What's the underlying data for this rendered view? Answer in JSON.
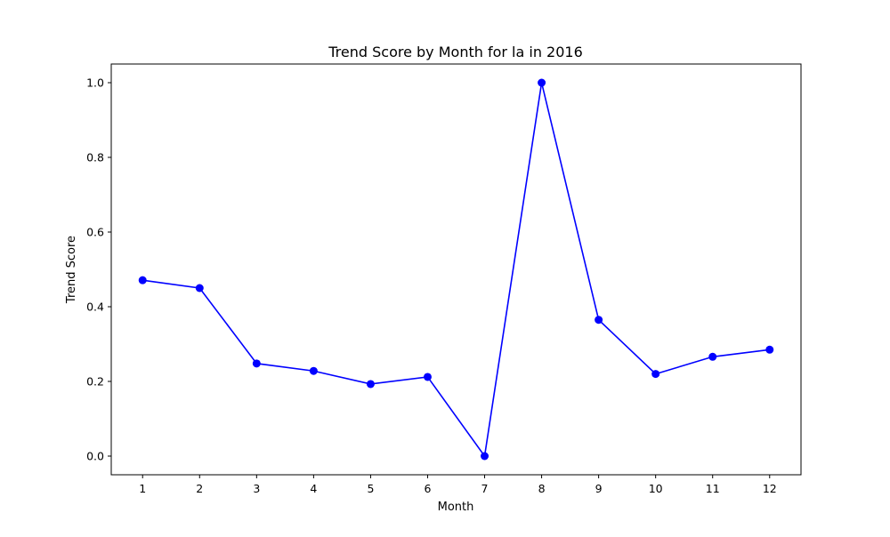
{
  "chart_data": {
    "type": "line",
    "title": "Trend Score by Month for la in 2016",
    "xlabel": "Month",
    "ylabel": "Trend Score",
    "x": [
      1,
      2,
      3,
      4,
      5,
      6,
      7,
      8,
      9,
      10,
      11,
      12
    ],
    "x_tick_labels": [
      "1",
      "2",
      "3",
      "4",
      "5",
      "6",
      "7",
      "8",
      "9",
      "10",
      "11",
      "12"
    ],
    "y_ticks": [
      0.0,
      0.2,
      0.4,
      0.6,
      0.8,
      1.0
    ],
    "y_tick_labels": [
      "0.0",
      "0.2",
      "0.4",
      "0.6",
      "0.8",
      "1.0"
    ],
    "xlim": [
      0.45,
      12.55
    ],
    "ylim": [
      -0.05,
      1.05
    ],
    "series": [
      {
        "values": [
          0.471,
          0.45,
          0.248,
          0.228,
          0.193,
          0.212,
          0.0,
          1.0,
          0.365,
          0.22,
          0.266,
          0.285
        ],
        "color": "#0000ff",
        "marker": "circle"
      }
    ],
    "grid": false,
    "legend": "none"
  }
}
